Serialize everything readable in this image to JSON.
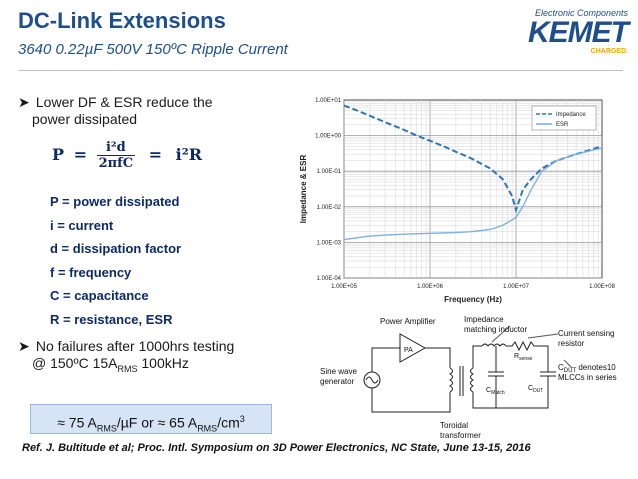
{
  "title": "DC-Link Extensions",
  "subtitle": "3640 0.22µF 500V 150ºC Ripple Current",
  "logo": {
    "tagline": "Electronic Components",
    "name": "KEMET",
    "badge": "CHARGED."
  },
  "bullet1": {
    "line1": "Lower DF & ESR reduce the",
    "line2": "power dissipated"
  },
  "formula": {
    "lhs": "P",
    "num": "i²d",
    "den": "2πfC",
    "eq": "=",
    "rhs": "i²R"
  },
  "definitions": [
    "P = power dissipated",
    "i = current",
    "d = dissipation factor",
    "f = frequency",
    "C = capacitance",
    "R = resistance, ESR"
  ],
  "bullet2": {
    "line1": "No failures after 1000hrs testing",
    "line2_pre": "@ 150ºC 15A",
    "line2_sub": "RMS",
    "line2_post": " 100kHz"
  },
  "result": {
    "p1": "≈ 75 A",
    "s1": "RMS",
    "p2": "/µF or ≈ 65 A",
    "s2": "RMS",
    "p3": "/cm",
    "sup": "3"
  },
  "reference": "Ref. J. Bultitude et al; Proc. Intl. Symposium on 3D Power Electronics,  NC State, June 13-15, 2016",
  "chart_data": {
    "type": "line",
    "xlabel": "Frequency (Hz)",
    "ylabel": "Impedance & ESR",
    "x_scale": "log",
    "y_scale": "log",
    "xlim": [
      100000,
      100000000
    ],
    "ylim": [
      0.0001,
      10
    ],
    "x_ticks": [
      "1.00E+05",
      "1.00E+06",
      "1.00E+07",
      "1.00E+08"
    ],
    "y_ticks": [
      "1.00E+01",
      "1.00E+00",
      "1.00E-01",
      "1.00E-02",
      "1.00E-03",
      "1.00E-04"
    ],
    "grid": true,
    "legend": "top-right",
    "series": [
      {
        "name": "Impedance",
        "style": "dashed",
        "color": "#2e75b6",
        "x": [
          100000,
          150000,
          200000,
          300000,
          500000,
          700000,
          1000000,
          1500000,
          2000000,
          3000000,
          5000000,
          7000000,
          9000000,
          10000000,
          12000000,
          15000000,
          20000000,
          30000000,
          50000000,
          100000000
        ],
        "y": [
          7.0,
          4.8,
          3.6,
          2.4,
          1.45,
          1.0,
          0.72,
          0.48,
          0.35,
          0.23,
          0.12,
          0.06,
          0.02,
          0.008,
          0.03,
          0.06,
          0.12,
          0.2,
          0.3,
          0.5
        ]
      },
      {
        "name": "ESR",
        "style": "solid",
        "color": "#7fb0e0",
        "x": [
          100000,
          200000,
          300000,
          500000,
          1000000,
          2000000,
          3000000,
          5000000,
          7000000,
          10000000,
          12000000,
          15000000,
          20000000,
          30000000,
          50000000,
          100000000
        ],
        "y": [
          0.0012,
          0.0015,
          0.0016,
          0.0017,
          0.0018,
          0.0019,
          0.002,
          0.0023,
          0.003,
          0.005,
          0.01,
          0.03,
          0.1,
          0.2,
          0.3,
          0.45
        ]
      }
    ]
  },
  "circuit": {
    "labels": [
      "Power Amplifier",
      "PA",
      "Impedance",
      "matching inductor",
      "Current sensing",
      "resistor",
      "Sine wave",
      "generator",
      "C",
      "DUT",
      " denotes10",
      "MLCCs in series",
      "Toroidal",
      "transformer",
      "R",
      "sense",
      "C",
      "Match",
      "C",
      "DUT"
    ]
  }
}
